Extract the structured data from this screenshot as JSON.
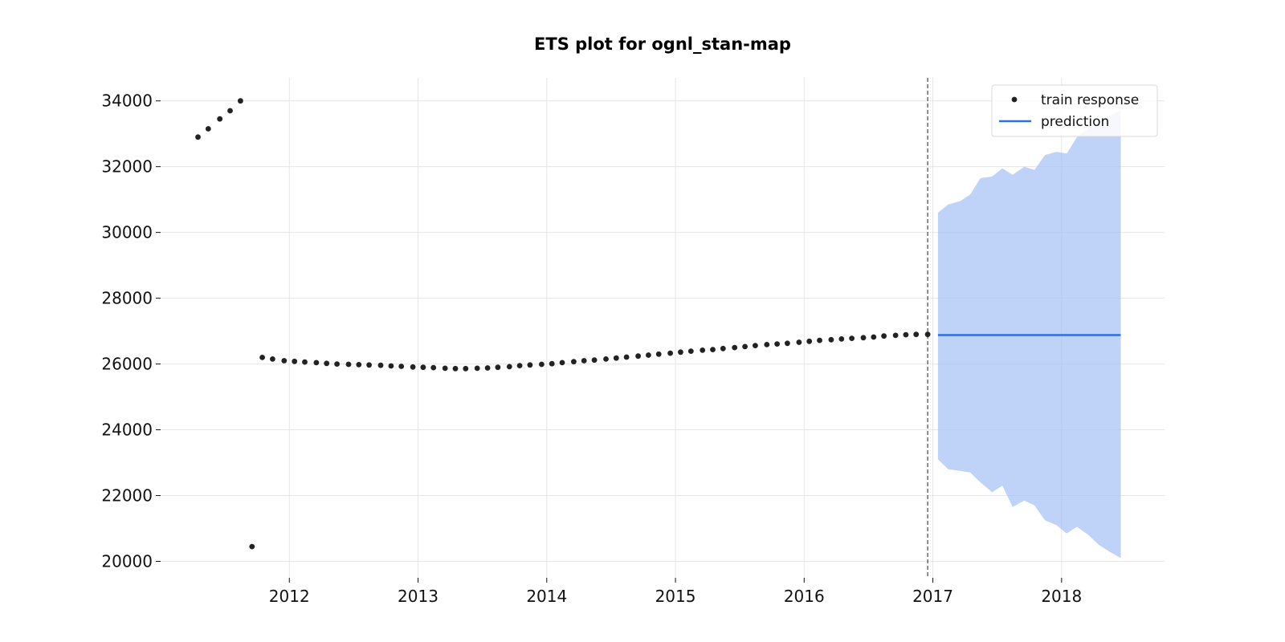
{
  "chart_data": {
    "type": "scatter",
    "title": "ETS plot for ognl_stan-map",
    "xlabel": "",
    "ylabel": "",
    "xlim": [
      2011.0,
      2018.8
    ],
    "ylim": [
      19500,
      34700
    ],
    "x_ticks": [
      2012,
      2013,
      2014,
      2015,
      2016,
      2017,
      2018
    ],
    "x_tick_labels": [
      "2012",
      "2013",
      "2014",
      "2015",
      "2016",
      "2017",
      "2018"
    ],
    "y_ticks": [
      20000,
      22000,
      24000,
      26000,
      28000,
      30000,
      32000,
      34000
    ],
    "y_tick_labels": [
      "20000",
      "22000",
      "24000",
      "26000",
      "28000",
      "30000",
      "32000",
      "34000"
    ],
    "grid": true,
    "legend_position": "top-right",
    "legend": [
      {
        "label": "train response",
        "marker": "dot",
        "color": "#222222"
      },
      {
        "label": "prediction",
        "marker": "line",
        "color": "#2e6fe0"
      }
    ],
    "colors": {
      "train_response": "#222222",
      "prediction": "#2e6fe0",
      "interval_fill": "#a6c1f5",
      "cutoff_line": "#555555",
      "grid": "#e6e6e6"
    },
    "cutoff_x": 2016.96,
    "series": [
      {
        "name": "train response",
        "kind": "scatter",
        "x": [
          2011.29,
          2011.37,
          2011.46,
          2011.54,
          2011.62,
          2011.71,
          2011.79,
          2011.87,
          2011.96,
          2012.04,
          2012.12,
          2012.21,
          2012.29,
          2012.37,
          2012.46,
          2012.54,
          2012.62,
          2012.71,
          2012.79,
          2012.87,
          2012.96,
          2013.04,
          2013.12,
          2013.21,
          2013.29,
          2013.37,
          2013.46,
          2013.54,
          2013.62,
          2013.71,
          2013.79,
          2013.87,
          2013.96,
          2014.04,
          2014.12,
          2014.21,
          2014.29,
          2014.37,
          2014.46,
          2014.54,
          2014.62,
          2014.71,
          2014.79,
          2014.87,
          2014.96,
          2015.04,
          2015.12,
          2015.21,
          2015.29,
          2015.37,
          2015.46,
          2015.54,
          2015.62,
          2015.71,
          2015.79,
          2015.87,
          2015.96,
          2016.04,
          2016.12,
          2016.21,
          2016.29,
          2016.37,
          2016.46,
          2016.54,
          2016.62,
          2016.71,
          2016.79,
          2016.87,
          2016.96
        ],
        "y": [
          32900,
          33150,
          33450,
          33700,
          34000,
          20450,
          26200,
          26150,
          26100,
          26080,
          26060,
          26040,
          26020,
          26000,
          25990,
          25980,
          25970,
          25960,
          25940,
          25930,
          25910,
          25900,
          25890,
          25870,
          25860,
          25860,
          25870,
          25880,
          25900,
          25920,
          25950,
          25970,
          25990,
          26010,
          26040,
          26070,
          26100,
          26120,
          26150,
          26180,
          26210,
          26240,
          26270,
          26300,
          26330,
          26360,
          26390,
          26420,
          26440,
          26470,
          26500,
          26530,
          26560,
          26590,
          26610,
          26630,
          26660,
          26690,
          26720,
          26740,
          26760,
          26780,
          26800,
          26820,
          26850,
          26870,
          26890,
          26900,
          26900
        ]
      },
      {
        "name": "prediction",
        "kind": "line",
        "x": [
          2017.04,
          2018.46
        ],
        "y": [
          26880,
          26880
        ]
      }
    ],
    "interval": {
      "x": [
        2017.04,
        2017.12,
        2017.21,
        2017.29,
        2017.37,
        2017.46,
        2017.54,
        2017.62,
        2017.71,
        2017.79,
        2017.87,
        2017.96,
        2018.04,
        2018.12,
        2018.21,
        2018.29,
        2018.37,
        2018.46
      ],
      "upper": [
        30600,
        30850,
        30950,
        31150,
        31650,
        31700,
        31950,
        31750,
        32000,
        31900,
        32350,
        32450,
        32400,
        32900,
        33150,
        33350,
        33550,
        33700
      ],
      "lower": [
        23100,
        22800,
        22750,
        22700,
        22400,
        22100,
        22300,
        21650,
        21850,
        21700,
        21250,
        21100,
        20850,
        21050,
        20800,
        20500,
        20300,
        20100
      ]
    }
  }
}
